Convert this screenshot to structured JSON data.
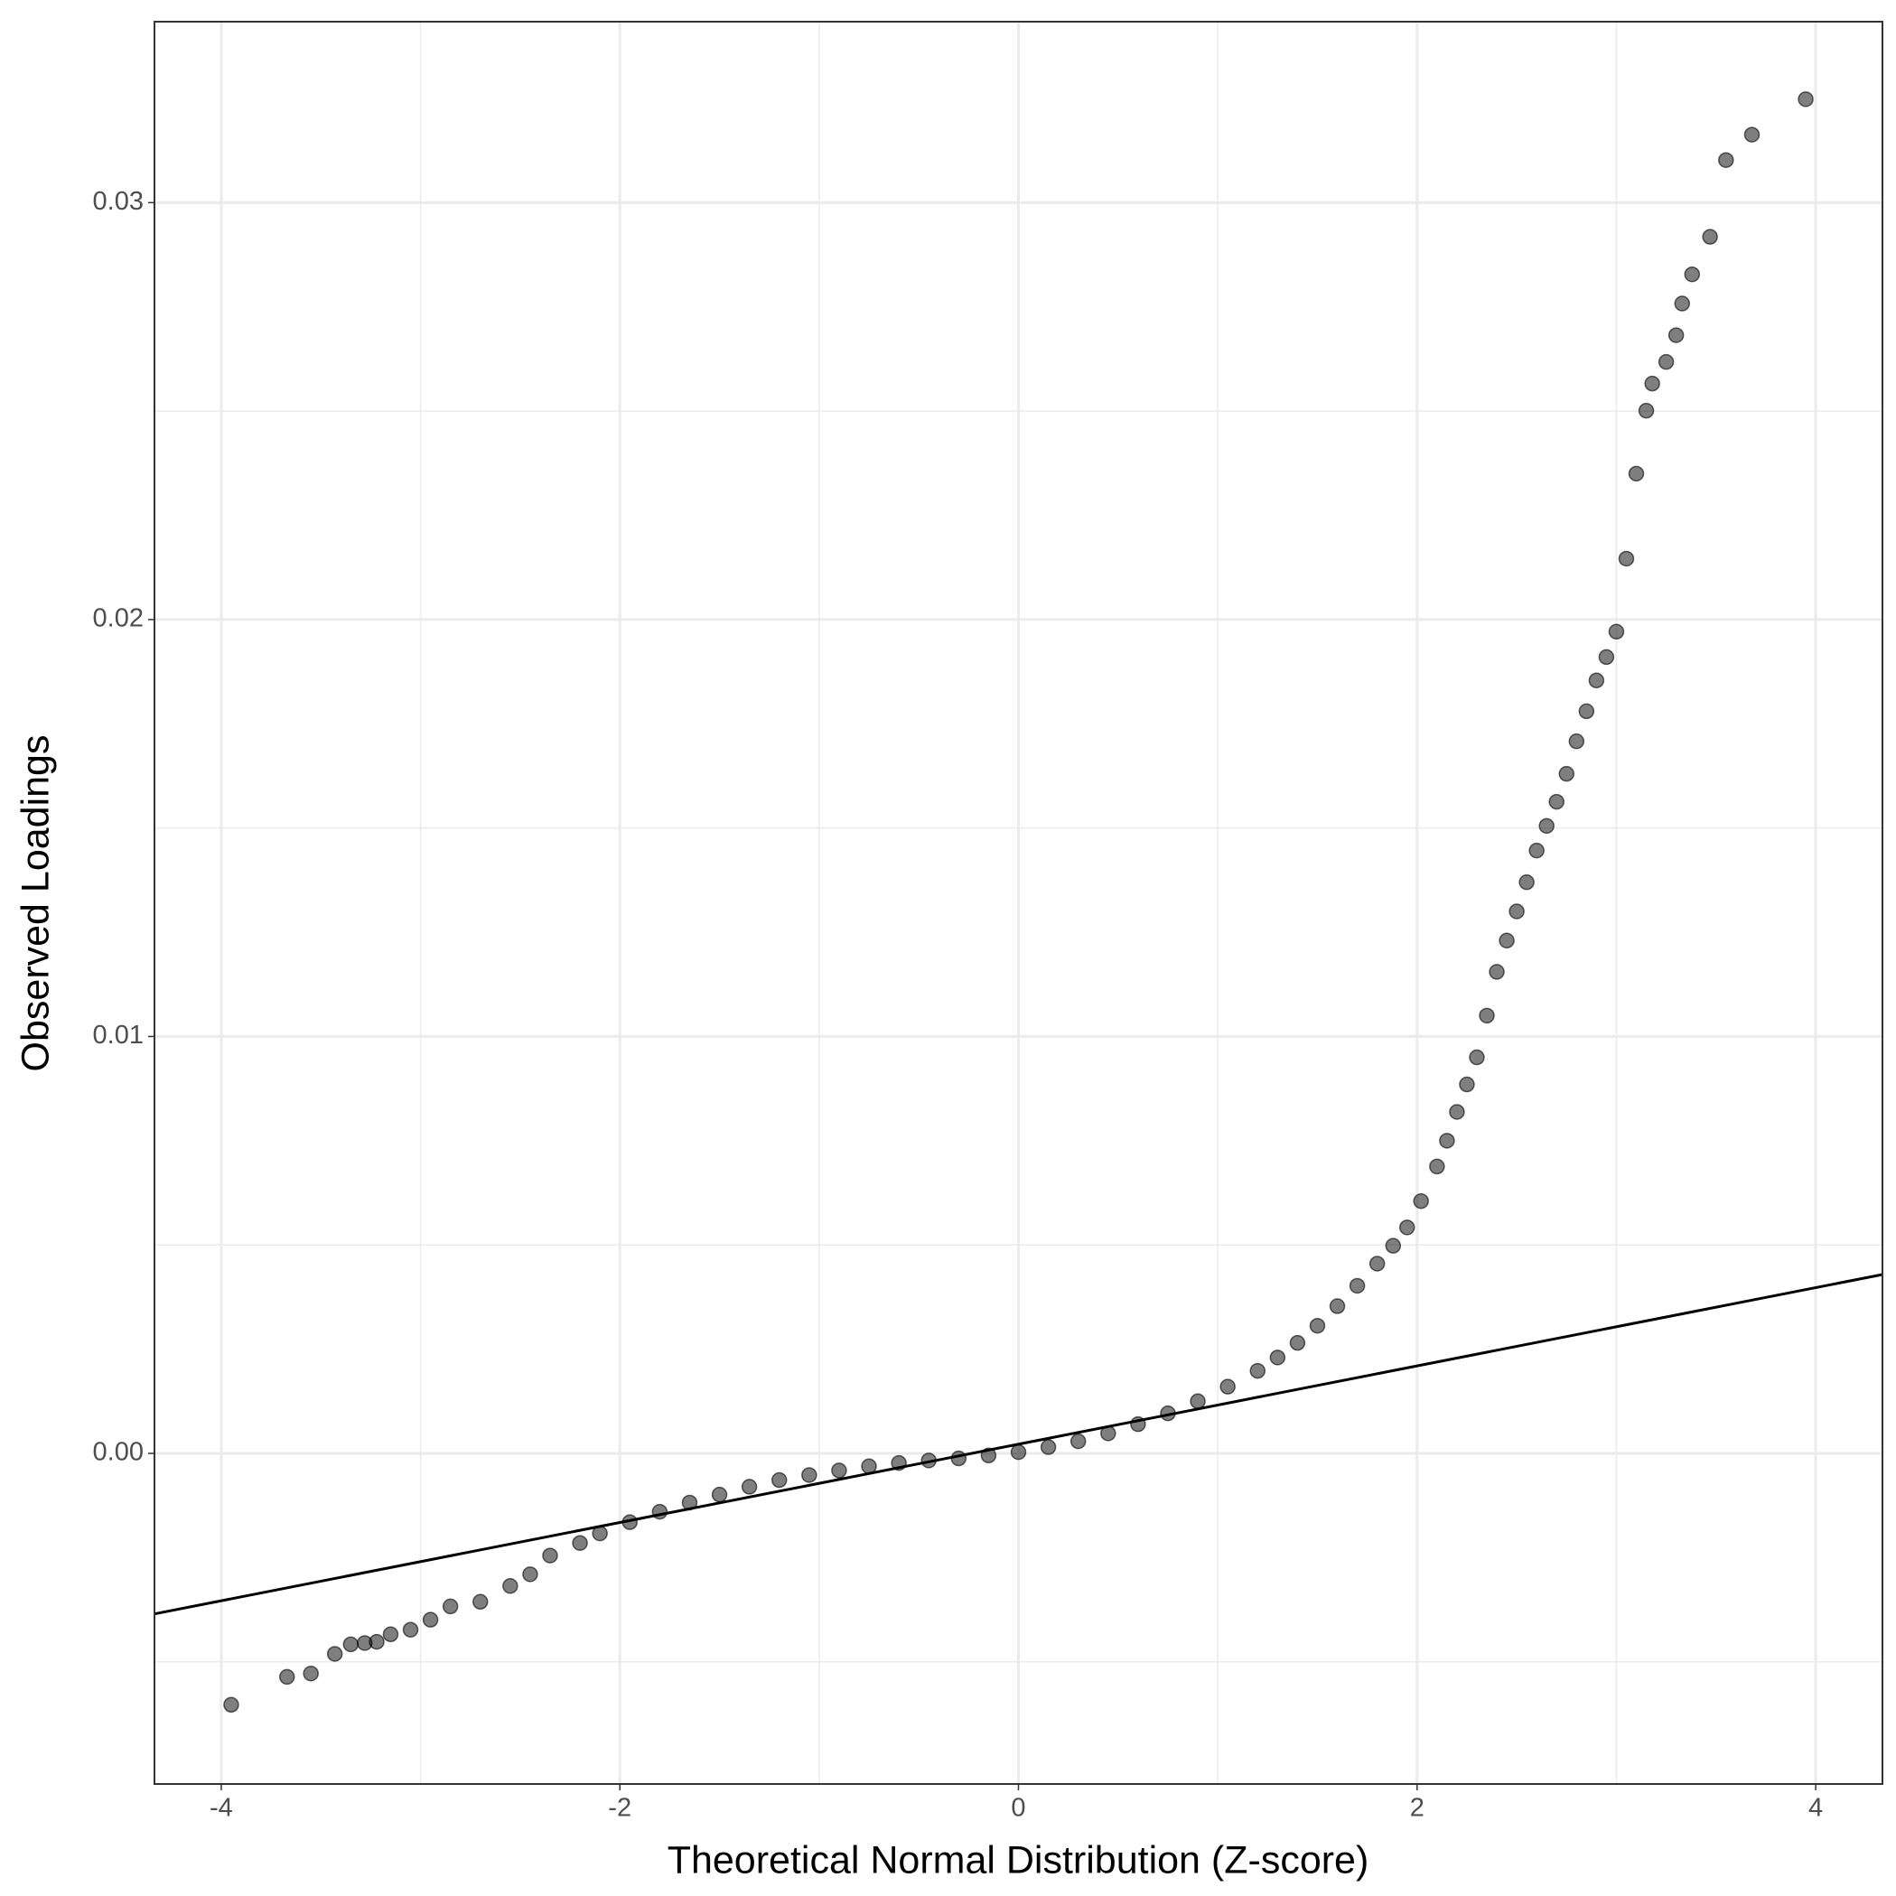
{
  "chart_data": {
    "type": "scatter",
    "x_label": "Theoretical Normal Distribution (Z-score)",
    "y_label": "Observed Loadings",
    "xlim": [
      -4.335,
      4.335
    ],
    "ylim": [
      -0.00793,
      0.03434
    ],
    "xticks": [
      -4,
      -2,
      0,
      2,
      4
    ],
    "yticks": [
      {
        "value": 0,
        "label": "0.00"
      },
      0.01,
      0.02,
      0.03
    ],
    "grid": true,
    "series": [
      {
        "color": "#000000",
        "x": [
          -3.95,
          -3.67,
          -3.55,
          -3.43,
          -3.35,
          -3.28,
          -3.22,
          -3.15,
          -3.05,
          -2.95,
          -2.85,
          -2.7,
          -2.55,
          -2.45,
          -2.35,
          -2.2,
          -2.1,
          -1.95,
          -1.8,
          -1.65,
          -1.5,
          -1.35,
          -1.2,
          -1.05,
          -0.9,
          -0.75,
          -0.6,
          -0.45,
          -0.3,
          -0.15,
          0,
          0.15,
          0.3,
          0.45,
          0.6,
          0.75,
          0.9,
          1.05,
          1.2,
          1.3,
          1.4,
          1.5,
          1.6,
          1.7,
          1.8,
          1.88,
          1.95,
          2.02,
          2.1,
          2.15,
          2.2,
          2.25,
          2.3,
          2.35,
          2.4,
          2.45,
          2.5,
          2.55,
          2.6,
          2.65,
          2.7,
          2.75,
          2.8,
          2.85,
          2.9,
          2.95,
          3.0,
          3.05,
          3.1,
          3.15,
          3.18,
          3.25,
          3.3,
          3.33,
          3.38,
          3.47,
          3.55,
          3.68,
          3.95
        ],
        "y": [
          -0.00603,
          -0.00536,
          -0.00528,
          -0.00481,
          -0.00458,
          -0.00455,
          -0.00452,
          -0.00434,
          -0.00423,
          -0.00399,
          -0.00367,
          -0.00356,
          -0.00318,
          -0.0029,
          -0.00245,
          -0.00215,
          -0.00192,
          -0.00165,
          -0.0014,
          -0.00118,
          -0.00099,
          -0.0008,
          -0.00064,
          -0.00052,
          -0.00041,
          -0.00031,
          -0.00023,
          -0.00017,
          -0.00012,
          -5e-05,
          3e-05,
          0.00015,
          0.00029,
          0.00048,
          0.0007,
          0.00096,
          0.00125,
          0.0016,
          0.00198,
          0.0023,
          0.00265,
          0.00306,
          0.00353,
          0.00402,
          0.00455,
          0.00498,
          0.00542,
          0.00605,
          0.00688,
          0.0075,
          0.00819,
          0.00885,
          0.0095,
          0.0105,
          0.01155,
          0.0123,
          0.013,
          0.0137,
          0.01446,
          0.01505,
          0.01563,
          0.0163,
          0.01708,
          0.0178,
          0.01854,
          0.0191,
          0.01971,
          0.02146,
          0.0235,
          0.02501,
          0.02566,
          0.02618,
          0.02682,
          0.02758,
          0.02828,
          0.02918,
          0.03102,
          0.03163,
          0.03248
        ]
      }
    ],
    "reference_line": {
      "x": [
        -4.335,
        4.335
      ],
      "y": [
        -0.00385,
        0.00429
      ],
      "color": "#000000"
    }
  }
}
